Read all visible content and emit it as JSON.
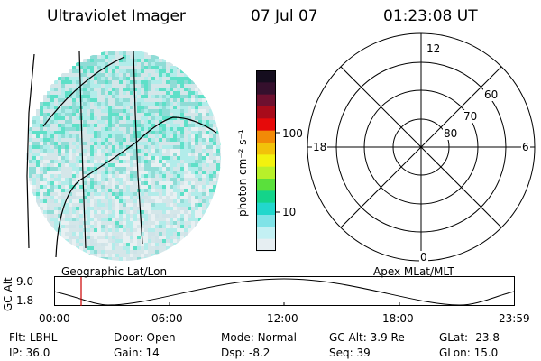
{
  "header": {
    "title": "Ultraviolet Imager",
    "date": "07 Jul 07",
    "time": "01:23:08 UT"
  },
  "image_panel": {
    "caption": "Geographic Lat/Lon",
    "pixel_colors": [
      "#d4e6e9",
      "#cfe3e8",
      "#8fdcd6",
      "#5ee0c8",
      "#b2ecea",
      "#e8f0f2"
    ]
  },
  "colorbar": {
    "unit_label": "photon cm⁻² s⁻¹",
    "ticks": [
      "100",
      "10"
    ],
    "colors": [
      "#e6eef2",
      "#c3f0f3",
      "#7fe3e7",
      "#22d7cc",
      "#14d48a",
      "#5ae03c",
      "#b8f02a",
      "#f2f20f",
      "#f2c20a",
      "#f28a07",
      "#e60a0a",
      "#a80b1a",
      "#6e102f",
      "#35102d",
      "#150d1e"
    ]
  },
  "polar_plot": {
    "caption": "Apex MLat/MLT",
    "mlt_labels": {
      "top": "12",
      "left": "18",
      "right": "6",
      "bottom": "0"
    },
    "mlat_labels": [
      "60",
      "70",
      "80"
    ]
  },
  "orbit_plot": {
    "ylabel": "GC Alt",
    "yticks": [
      "9.0",
      "1.8"
    ],
    "xticks": [
      "00:00",
      "06:00",
      "12:00",
      "18:00",
      "23:59"
    ],
    "current_marker_color": "#cc0000"
  },
  "status": {
    "filter_label": "Flt:",
    "filter_value": "LBHL",
    "door_label": "Door:",
    "door_value": "Open",
    "mode_label": "Mode:",
    "mode_value": "Normal",
    "gcalt_label": "GC Alt:",
    "gcalt_value": "3.9 Re",
    "glat_label": "GLat:",
    "glat_value": "-23.8",
    "ip_label": "IP:",
    "ip_value": "36.0",
    "gain_label": "Gain:",
    "gain_value": "14",
    "dsp_label": "Dsp:",
    "dsp_value": "-8.2",
    "seq_label": "Seq:",
    "seq_value": "39",
    "glon_label": "GLon:",
    "glon_value": "15.0"
  }
}
